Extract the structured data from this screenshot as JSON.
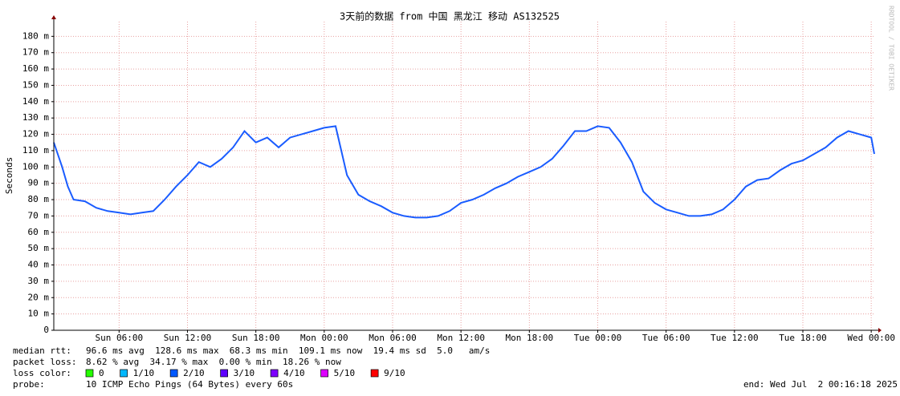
{
  "chart_data": {
    "type": "line",
    "title": "3天前的数据 from 中国 黑龙江 移动 AS132525",
    "y_label": "Seconds",
    "watermark": "RRDTOOL / TOBI OETIKER",
    "xlim": [
      0.27,
      72.27
    ],
    "xticks": [
      {
        "value": 6,
        "label": "Sun 06:00"
      },
      {
        "value": 12,
        "label": "Sun 12:00"
      },
      {
        "value": 18,
        "label": "Sun 18:00"
      },
      {
        "value": 24,
        "label": "Mon 00:00"
      },
      {
        "value": 30,
        "label": "Mon 06:00"
      },
      {
        "value": 36,
        "label": "Mon 12:00"
      },
      {
        "value": 42,
        "label": "Mon 18:00"
      },
      {
        "value": 48,
        "label": "Tue 00:00"
      },
      {
        "value": 54,
        "label": "Tue 06:00"
      },
      {
        "value": 60,
        "label": "Tue 12:00"
      },
      {
        "value": 66,
        "label": "Tue 18:00"
      },
      {
        "value": 72,
        "label": "Wed 00:00"
      }
    ],
    "ylim": [
      0,
      189
    ],
    "yticks": [
      0,
      {
        "value": 10,
        "label": "10 m"
      },
      {
        "value": 20,
        "label": "20 m"
      },
      {
        "value": 30,
        "label": "30 m"
      },
      {
        "value": 40,
        "label": "40 m"
      },
      {
        "value": 50,
        "label": "50 m"
      },
      {
        "value": 60,
        "label": "60 m"
      },
      {
        "value": 70,
        "label": "70 m"
      },
      {
        "value": 80,
        "label": "80 m"
      },
      {
        "value": 90,
        "label": "90 m"
      },
      {
        "value": 100,
        "label": "100 m"
      },
      {
        "value": 110,
        "label": "110 m"
      },
      {
        "value": 120,
        "label": "120 m"
      },
      {
        "value": 130,
        "label": "130 m"
      },
      {
        "value": 140,
        "label": "140 m"
      },
      {
        "value": 150,
        "label": "150 m"
      },
      {
        "value": 160,
        "label": "160 m"
      },
      {
        "value": 170,
        "label": "170 m"
      },
      {
        "value": 180,
        "label": "180 m"
      }
    ],
    "grid": true,
    "x": [
      0.27,
      1,
      1.5,
      2,
      3,
      4,
      5,
      6,
      7,
      8,
      9,
      10,
      11,
      12,
      13,
      14,
      15,
      16,
      17,
      18,
      19,
      20,
      21,
      22,
      23,
      24,
      25,
      25.5,
      26,
      27,
      28,
      29,
      30,
      31,
      32,
      33,
      34,
      35,
      36,
      37,
      38,
      39,
      40,
      41,
      42,
      43,
      44,
      45,
      46,
      47,
      48,
      49,
      50,
      51,
      52,
      53,
      54,
      55,
      56,
      57,
      58,
      59,
      60,
      61,
      62,
      63,
      64,
      65,
      66,
      67,
      68,
      69,
      70,
      71,
      72,
      72.27
    ],
    "series": [
      {
        "color": "#1a5cff",
        "values": [
          115,
          100,
          88,
          80,
          79,
          75,
          73,
          72,
          71,
          72,
          73,
          80,
          88,
          95,
          103,
          100,
          105,
          112,
          122,
          115,
          118,
          112,
          118,
          120,
          122,
          124,
          125,
          110,
          95,
          83,
          79,
          76,
          72,
          70,
          69,
          69,
          70,
          73,
          78,
          80,
          83,
          87,
          90,
          94,
          97,
          100,
          105,
          113,
          122,
          122,
          125,
          124,
          115,
          103,
          85,
          78,
          74,
          72,
          70,
          70,
          71,
          74,
          80,
          88,
          92,
          93,
          98,
          102,
          104,
          108,
          112,
          118,
          122,
          120,
          118,
          108
        ]
      }
    ],
    "legend": {
      "rtt_label": "median rtt:",
      "rtt_stats": "96.6 ms avg  128.6 ms max  68.3 ms min  109.1 ms now  19.4 ms sd  5.0   am/s",
      "loss_label": "packet loss:",
      "loss_stats": "8.62 % avg  34.17 % max  0.00 % min  18.26 % now",
      "color_label": "loss color:",
      "loss_colors": [
        {
          "label": "0",
          "color": "#26ff00"
        },
        {
          "label": "1/10",
          "color": "#00b8ff"
        },
        {
          "label": "2/10",
          "color": "#0059ff"
        },
        {
          "label": "3/10",
          "color": "#5e00ff"
        },
        {
          "label": "4/10",
          "color": "#7e00ff"
        },
        {
          "label": "5/10",
          "color": "#dd00ff"
        },
        {
          "label": "9/10",
          "color": "#ff0000"
        }
      ],
      "probe_label": "probe:",
      "probe": "10 ICMP Echo Pings (64 Bytes) every 60s",
      "end": "end: Wed Jul  2 00:16:18 2025"
    }
  }
}
